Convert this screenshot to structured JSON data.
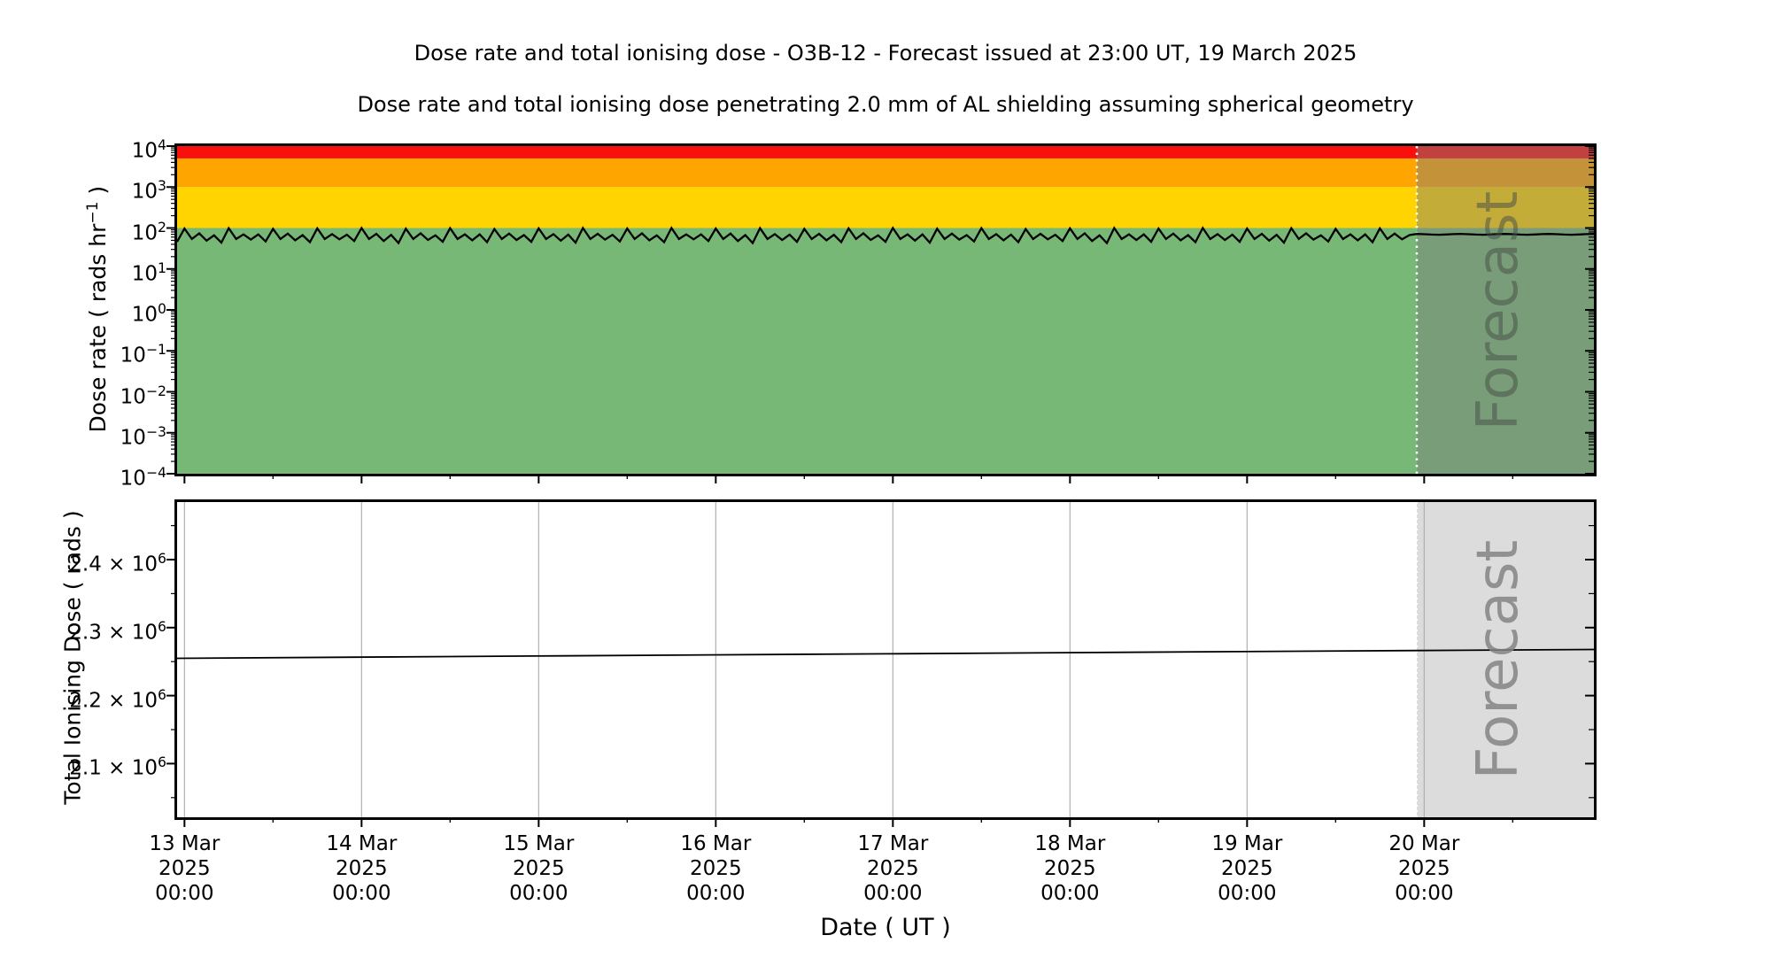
{
  "page": {
    "title": "Dose rate and total ionising dose - O3B-12 - Forecast issued at 23:00 UT, 19 March 2025",
    "subtitle": "Dose rate and total ionising dose penetrating 2.0 mm of AL shielding assuming spherical geometry",
    "background": "#ffffff"
  },
  "forecast_label": "Forecast",
  "top_chart": {
    "ylabel": {
      "pre": "Dose rate ( rads hr",
      "sup": "−1",
      "post": " )"
    },
    "y_ticks": [
      {
        "coef": "10",
        "exp": "4"
      },
      {
        "coef": "10",
        "exp": "3"
      },
      {
        "coef": "10",
        "exp": "2"
      },
      {
        "coef": "10",
        "exp": "1"
      },
      {
        "coef": "10",
        "exp": "0"
      },
      {
        "coef": "10",
        "exp": "−1"
      },
      {
        "coef": "10",
        "exp": "−2"
      },
      {
        "coef": "10",
        "exp": "−3"
      },
      {
        "coef": "10",
        "exp": "−4"
      }
    ]
  },
  "bottom_chart": {
    "ylabel": "Total Ionising Dose ( rads )",
    "y_ticks": [
      {
        "coef": "2.4 × 10",
        "exp": "6",
        "value": 2400000
      },
      {
        "coef": "2.3 × 10",
        "exp": "6",
        "value": 2300000
      },
      {
        "coef": "2.2 × 10",
        "exp": "6",
        "value": 2200000
      },
      {
        "coef": "2.1 × 10",
        "exp": "6",
        "value": 2100000
      }
    ],
    "y_minor_values": [
      2450000,
      2350000,
      2250000,
      2150000,
      2050000
    ]
  },
  "x_axis": {
    "label": "Date ( UT )",
    "ticks": [
      {
        "date": "13 Mar",
        "year": "2025",
        "time": "00:00"
      },
      {
        "date": "14 Mar",
        "year": "2025",
        "time": "00:00"
      },
      {
        "date": "15 Mar",
        "year": "2025",
        "time": "00:00"
      },
      {
        "date": "16 Mar",
        "year": "2025",
        "time": "00:00"
      },
      {
        "date": "17 Mar",
        "year": "2025",
        "time": "00:00"
      },
      {
        "date": "18 Mar",
        "year": "2025",
        "time": "00:00"
      },
      {
        "date": "19 Mar",
        "year": "2025",
        "time": "00:00"
      },
      {
        "date": "20 Mar",
        "year": "2025",
        "time": "00:00"
      }
    ]
  },
  "colors": {
    "band_green": "#77b877",
    "band_yellow": "#ffd400",
    "band_orange": "#ffa500",
    "band_red": "#fa0f0f",
    "grid": "#b0b0b0",
    "frame": "#000000",
    "line": "#000000",
    "forecast_overlay_top": "rgba(125,125,125,0.45)",
    "forecast_fill_bottom": "#dcdcdc",
    "forecast_divider": "#ffffff",
    "forecast_text_top": "rgba(70,78,70,0.52)",
    "forecast_text_bottom": "rgba(132,132,132,0.85)"
  },
  "chart_data": [
    {
      "id": "dose-rate",
      "type": "area",
      "title": "Dose rate",
      "ylabel": "Dose rate ( rads hr^-1 )",
      "yscale": "log",
      "ylim": [
        0.0001,
        10000
      ],
      "x_start": "2025-03-12 23:00 UT",
      "x_end": "2025-03-20 23:00 UT",
      "forecast_start": "2025-03-19 23:00 UT",
      "threshold_bands": [
        {
          "name": "green",
          "from": 0.0001,
          "to": 100,
          "color": "#77b877"
        },
        {
          "name": "yellow",
          "from": 100,
          "to": 1000,
          "color": "#ffd400"
        },
        {
          "name": "orange",
          "from": 1000,
          "to": 5000,
          "color": "#ffa500"
        },
        {
          "name": "red",
          "from": 5000,
          "to": 10000,
          "color": "#fa0f0f"
        }
      ],
      "series": {
        "name": "Dose rate",
        "unit": "rads hr^-1",
        "sampling_hours": 1,
        "observed": {
          "hours": 168,
          "period_hours": 6,
          "motif_6h": [
            100,
            54,
            72,
            50,
            68,
            45
          ],
          "peak_var": [
            0,
            -3,
            -1,
            -5,
            -2,
            0,
            -4,
            -1,
            -6,
            -2,
            0,
            -3
          ],
          "bump_var": [
            0,
            2,
            -2,
            1,
            -1
          ],
          "trough_var": [
            1,
            -1,
            2,
            0,
            3,
            -2,
            1,
            0
          ],
          "peak_value_rads_hr": 100,
          "trough_value_rads_hr": 45
        },
        "forecast": {
          "hours": 24,
          "base": 70,
          "wiggle": [
            1.5,
            0.5,
            -0.8,
            -1.5,
            -0.3,
            1.0
          ]
        }
      }
    },
    {
      "id": "total-ionising-dose",
      "type": "line",
      "title": "Total Ionising Dose",
      "ylabel": "Total Ionising Dose ( rads )",
      "yscale": "linear",
      "ylim": [
        2000000,
        2500000
      ],
      "x_start": "2025-03-12 23:00 UT",
      "x_end": "2025-03-20 23:00 UT",
      "forecast_start": "2025-03-19 23:00 UT",
      "points_hours": [
        0,
        24,
        48,
        72,
        96,
        120,
        144,
        168,
        192
      ],
      "values_rads": [
        2254800,
        2256500,
        2258200,
        2259900,
        2261500,
        2263100,
        2264700,
        2266300,
        2267800
      ]
    }
  ]
}
